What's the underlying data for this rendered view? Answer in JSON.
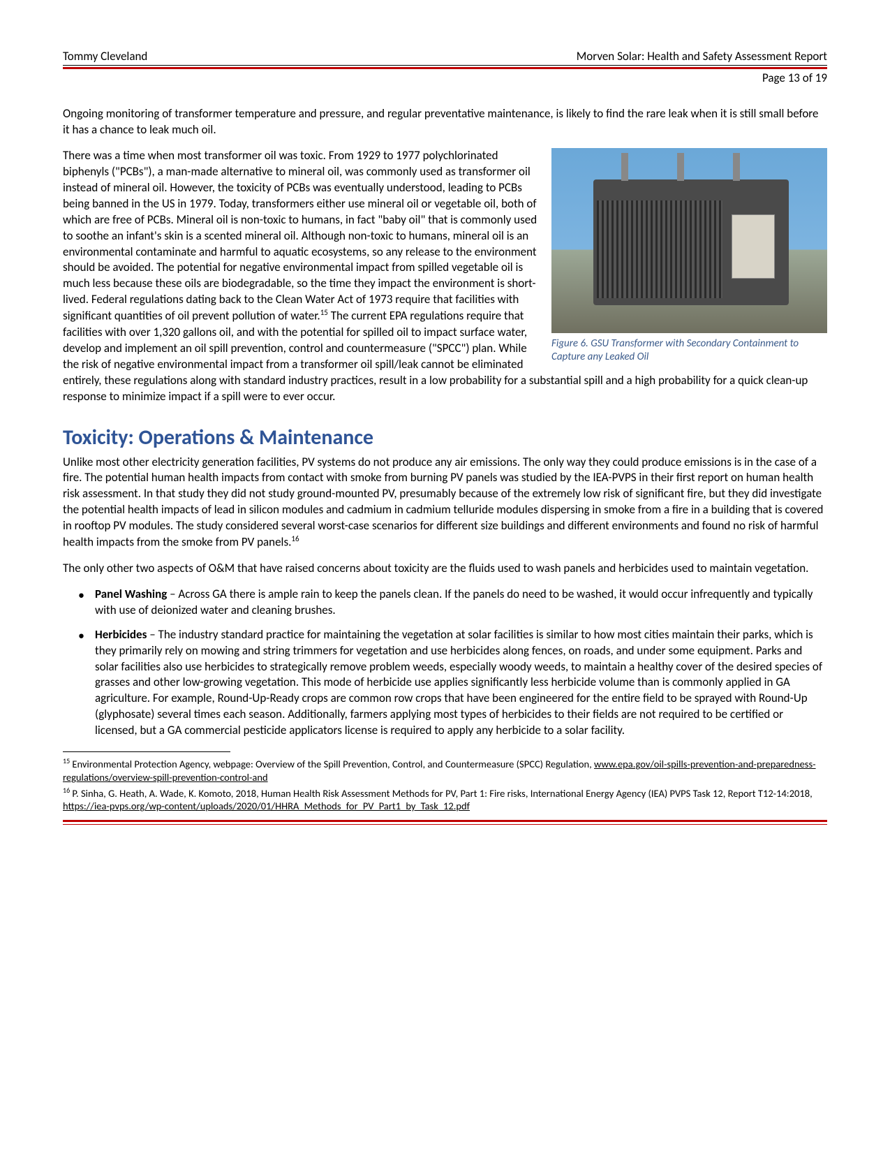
{
  "header": {
    "author": "Tommy Cleveland",
    "title": "Morven Solar: Health and Safety Assessment Report",
    "page_label": "Page 13 of 19"
  },
  "colors": {
    "accent_red": "#c00000",
    "heading_blue": "#2f5496",
    "caption_blue": "#3a5a8a",
    "text": "#000000",
    "background": "#ffffff"
  },
  "para_intro": "Ongoing monitoring of transformer temperature and pressure, and regular preventative maintenance, is likely to find the rare leak when it is still small before it has a chance to leak much oil.",
  "para_main_1": "There was a time when most transformer oil was toxic. From 1929 to 1977 polychlorinated biphenyls (\"PCBs\"), a man-made alternative to mineral oil, was commonly used as transformer oil instead of mineral oil. However, the toxicity of PCBs was eventually understood, leading to PCBs being banned in the US in 1979. Today, transformers either use mineral oil or vegetable oil, both of which are free of PCBs. Mineral oil is non-toxic to humans, in fact \"baby oil\" that is commonly used to soothe an infant's skin is a scented mineral oil. Although non-toxic to humans, mineral oil is an environmental contaminate and harmful to aquatic ecosystems, so any release to the environment should be avoided. The potential for negative environmental impact from spilled vegetable oil is much less because these oils are biodegradable, so the time they impact the environment is short-lived. Federal regulations dating back to the Clean Water Act of 1973 require that facilities with significant quantities of oil prevent pollution of water.",
  "fn15_ref": "15",
  "para_main_2": " The current EPA regulations require that facilities with over 1,320 gallons oil, and with the potential for spilled oil to impact surface water, develop and implement an oil spill prevention, control and countermeasure (\"SPCC\") plan. While the risk of negative environmental impact from a transformer oil spill/leak cannot be eliminated entirely, these regulations along with standard industry practices, result in a low probability for a substantial spill and a high probability for a quick clean-up response to minimize impact if a spill were to ever occur.",
  "figure": {
    "caption": "Figure 6. GSU Transformer with Secondary Containment to Capture any Leaked Oil"
  },
  "section_heading": "Toxicity: Operations & Maintenance",
  "para_om_1a": "Unlike most other electricity generation facilities, PV systems do not produce any air emissions. The only way they could produce emissions is in the case of a fire. The potential human health impacts from contact with smoke from burning PV panels was studied by the IEA-PVPS in their first report on human health risk assessment. In that study they did not study ground-mounted PV, presumably because of the extremely low risk of significant fire, but they did investigate the potential health impacts of lead in silicon modules and cadmium in cadmium telluride modules dispersing in smoke from a fire in a building that is covered in rooftop PV modules. The study considered several worst-case scenarios for different size buildings and different environments and found no risk of harmful health impacts from the smoke from PV panels.",
  "fn16_ref": "16",
  "para_om_2": "The only other two aspects of O&M that have raised concerns about toxicity are the fluids used to wash panels and herbicides used to maintain vegetation.",
  "bullets": {
    "b1_label": "Panel Washing",
    "b1_text": " – Across GA there is ample rain to keep the panels clean. If the panels do need to be washed, it would occur infrequently and typically with use of deionized water and cleaning brushes.",
    "b2_label": "Herbicides",
    "b2_text": " – The industry standard practice for maintaining the vegetation at solar facilities is similar to how most cities maintain their parks, which is they primarily rely on mowing and string trimmers for vegetation and use herbicides along fences, on roads, and under some equipment. Parks and solar facilities also use herbicides to strategically remove problem weeds, especially woody weeds, to maintain a healthy cover of the desired species of grasses and other low-growing vegetation. This mode of herbicide use applies significantly less herbicide volume than is commonly applied in GA agriculture. For example, Round-Up-Ready crops are common row crops that have been engineered for the entire field to be sprayed with Round-Up (glyphosate) several times each season. Additionally, farmers applying most types of herbicides to their fields are not required to be certified or licensed, but a GA commercial pesticide applicators license is required to apply any herbicide to a solar facility."
  },
  "footnotes": {
    "fn15_num": "15",
    "fn15_text": " Environmental Protection Agency, webpage: Overview of the Spill Prevention, Control, and Countermeasure (SPCC) Regulation, ",
    "fn15_link": "www.epa.gov/oil-spills-prevention-and-preparedness-regulations/overview-spill-prevention-control-and",
    "fn16_num": "16",
    "fn16_text": " P. Sinha, G. Heath, A. Wade, K. Komoto, 2018, Human Health Risk Assessment Methods for PV, Part 1: Fire risks, International Energy Agency (IEA) PVPS Task 12, Report T12-14:2018, ",
    "fn16_link": "https://iea-pvps.org/wp-content/uploads/2020/01/HHRA_Methods_for_PV_Part1_by_Task_12.pdf"
  }
}
